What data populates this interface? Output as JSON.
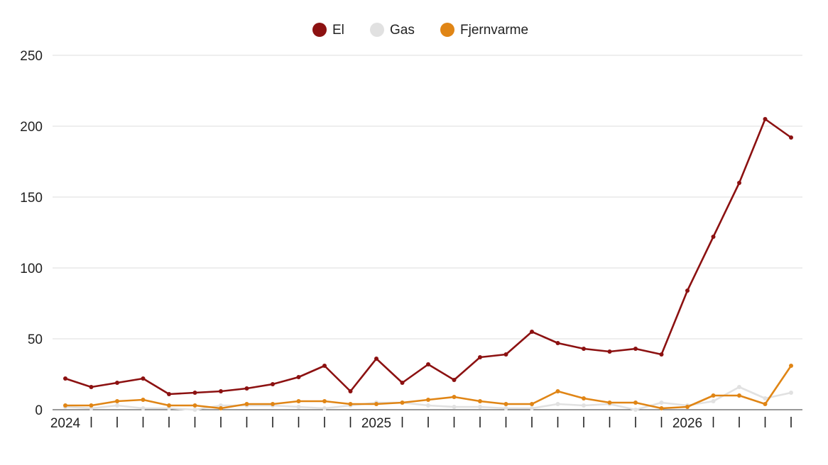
{
  "chart_data": {
    "type": "line",
    "legend_position": "top-center",
    "grid": "horizontal",
    "ylim": [
      0,
      250
    ],
    "y_ticks": [
      "0",
      "50",
      "100",
      "150",
      "200",
      "250"
    ],
    "x_tick_labels": [
      "2024",
      "2025",
      "2026"
    ],
    "x": [
      "2024-Q1",
      "2024-M2",
      "2024-M3",
      "2024-M4",
      "2024-M5",
      "2024-M6",
      "2024-M7",
      "2024-M8",
      "2024-M9",
      "2024-M10",
      "2024-M11",
      "2024-M12",
      "2025-M1",
      "2025-M2",
      "2025-M3",
      "2025-M4",
      "2025-M5",
      "2025-M6",
      "2025-M7",
      "2025-M8",
      "2025-M9",
      "2025-M10",
      "2025-M11",
      "2025-M12",
      "2026-M1",
      "2026-M2",
      "2026-M3",
      "2026-M4",
      "2026-M5"
    ],
    "series": [
      {
        "name": "El",
        "color": "#8c1111",
        "values": [
          22,
          16,
          19,
          22,
          11,
          12,
          13,
          15,
          18,
          23,
          31,
          13,
          36,
          19,
          32,
          21,
          37,
          39,
          55,
          47,
          43,
          41,
          43,
          39,
          84,
          122,
          160,
          205,
          192
        ]
      },
      {
        "name": "Gas",
        "color": "#e1e1e1",
        "values": [
          2,
          1,
          3,
          1,
          1,
          0,
          3,
          3,
          3,
          2,
          1,
          3,
          5,
          5,
          3,
          2,
          2,
          1,
          1,
          4,
          3,
          4,
          0,
          5,
          3,
          6,
          16,
          8,
          12
        ]
      },
      {
        "name": "Fjernvarme",
        "color": "#e08515",
        "values": [
          3,
          3,
          6,
          7,
          3,
          3,
          1,
          4,
          4,
          6,
          6,
          4,
          4,
          5,
          7,
          9,
          6,
          4,
          4,
          13,
          8,
          5,
          5,
          1,
          2,
          10,
          10,
          4,
          31
        ]
      }
    ]
  }
}
